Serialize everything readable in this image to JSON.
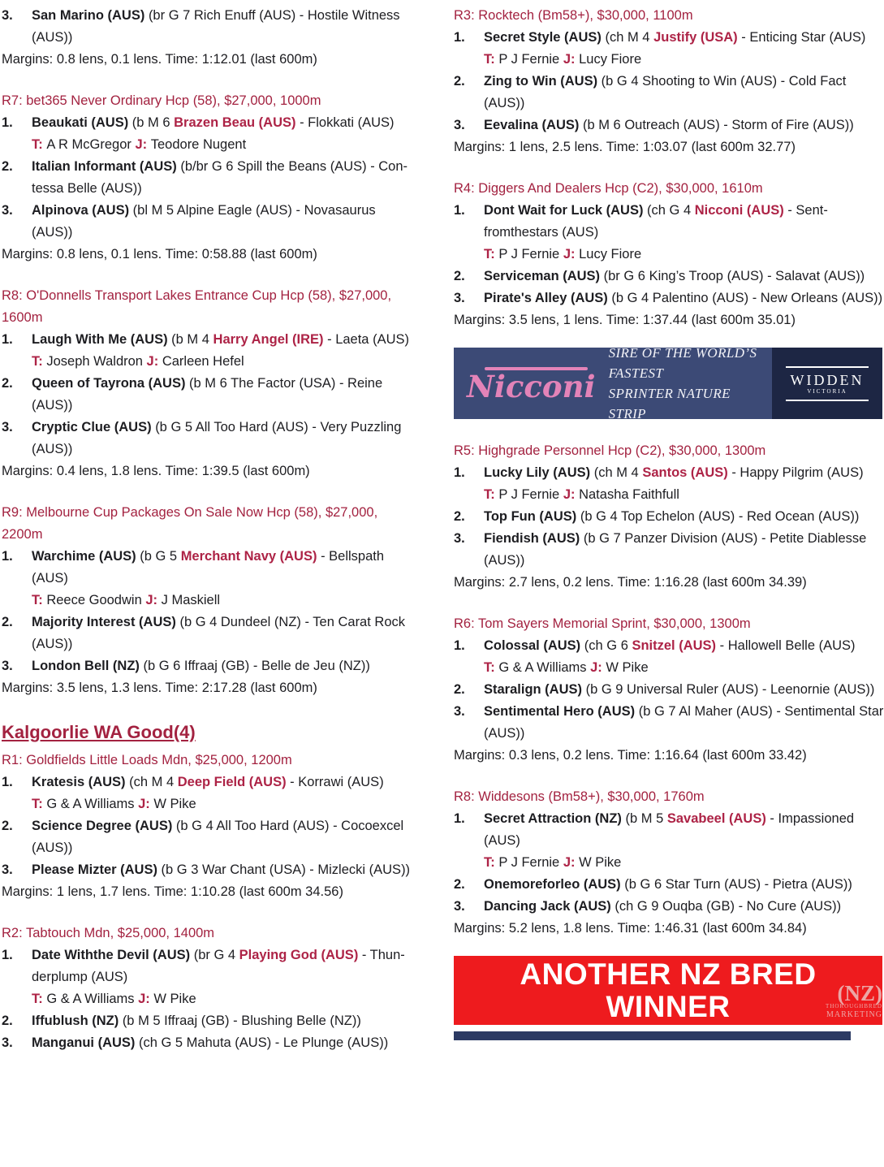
{
  "colors": {
    "accent_header": "#a32240",
    "accent_link": "#ad2346",
    "body_text": "#1d1d21",
    "nicconi_navy": "#3c4a76",
    "widden_navy": "#1d2644",
    "nicconi_pink": "#e383b8",
    "red_banner": "#ee1b1e",
    "banner_text": "#ffffff",
    "nz_mark": "#eba6a6",
    "bottom_strip": "#2c3a63"
  },
  "columns": [
    {
      "side": "left",
      "blocks": [
        {
          "type": "entry",
          "num": "3.",
          "main": [
            {
              "t": "San Marino (AUS) ",
              "s": "b"
            },
            {
              "t": "(br G 7 Rich Enuff (AUS) - Hostile Witness (AUS))",
              "s": "n"
            }
          ]
        },
        {
          "type": "margins",
          "text": "Margins: 0.8 lens, 0.1 lens. Time: 1:12.01 (last 600m)"
        },
        {
          "type": "race_header",
          "text": "R7: bet365 Never Ordinary Hcp (58), $27,000, 1000m"
        },
        {
          "type": "entry",
          "num": "1.",
          "main": [
            {
              "t": "Beaukati (AUS) ",
              "s": "b"
            },
            {
              "t": "(b M 6 ",
              "s": "n"
            },
            {
              "t": "Brazen Beau (AUS)",
              "s": "sire"
            },
            {
              "t": " - Flokkati (AUS)",
              "s": "n"
            }
          ],
          "tj": [
            {
              "t": "T: ",
              "s": "tjlabel"
            },
            {
              "t": "A R McGregor ",
              "s": "n"
            },
            {
              "t": "J: ",
              "s": "tjlabel"
            },
            {
              "t": "Teodore Nugent",
              "s": "n"
            }
          ]
        },
        {
          "type": "entry",
          "num": "2.",
          "main": [
            {
              "t": "Italian Informant (AUS) ",
              "s": "b"
            },
            {
              "t": "(b/br G 6 Spill the Beans (AUS) - Con­tessa Belle (AUS))",
              "s": "n"
            }
          ]
        },
        {
          "type": "entry",
          "num": "3.",
          "main": [
            {
              "t": "Alpinova (AUS) ",
              "s": "b"
            },
            {
              "t": "(bl M 5 Alpine Eagle (AUS) - Novasaurus (AUS))",
              "s": "n"
            }
          ]
        },
        {
          "type": "margins",
          "text": "Margins: 0.8 lens, 0.1 lens. Time: 0:58.88 (last 600m)"
        },
        {
          "type": "race_header",
          "text": "R8: O'Donnells Transport Lakes Entrance Cup Hcp (58), $27,000, 1600m"
        },
        {
          "type": "entry",
          "num": "1.",
          "main": [
            {
              "t": "Laugh With Me (AUS) ",
              "s": "b"
            },
            {
              "t": "(b M 4 ",
              "s": "n"
            },
            {
              "t": "Harry Angel (IRE)",
              "s": "sire"
            },
            {
              "t": " - Laeta (AUS)",
              "s": "n"
            }
          ],
          "tj": [
            {
              "t": "T: ",
              "s": "tjlabel"
            },
            {
              "t": "Joseph Waldron ",
              "s": "n"
            },
            {
              "t": "J: ",
              "s": "tjlabel"
            },
            {
              "t": "Carleen Hefel",
              "s": "n"
            }
          ]
        },
        {
          "type": "entry",
          "num": "2.",
          "main": [
            {
              "t": "Queen of Tayrona (AUS) ",
              "s": "b"
            },
            {
              "t": "(b M 6 The Factor (USA) - Reine (AUS))",
              "s": "n"
            }
          ]
        },
        {
          "type": "entry",
          "num": "3.",
          "main": [
            {
              "t": "Cryptic Clue (AUS) ",
              "s": "b"
            },
            {
              "t": "(b G 5 All Too Hard (AUS) - Very Puzzling (AUS))",
              "s": "n"
            }
          ]
        },
        {
          "type": "margins",
          "text": "Margins: 0.4 lens, 1.8 lens. Time: 1:39.5 (last 600m)"
        },
        {
          "type": "race_header",
          "text": "R9: Melbourne Cup Packages On Sale Now Hcp (58), $27,000, 2200m"
        },
        {
          "type": "entry",
          "num": "1.",
          "main": [
            {
              "t": "Warchime (AUS) ",
              "s": "b"
            },
            {
              "t": "(b G 5 ",
              "s": "n"
            },
            {
              "t": "Merchant Navy (AUS)",
              "s": "sire"
            },
            {
              "t": " - Bellspath (AUS)",
              "s": "n"
            }
          ],
          "tj": [
            {
              "t": "T: ",
              "s": "tjlabel"
            },
            {
              "t": "Reece Goodwin ",
              "s": "n"
            },
            {
              "t": "J: ",
              "s": "tjlabel"
            },
            {
              "t": "J Maskiell",
              "s": "n"
            }
          ]
        },
        {
          "type": "entry",
          "num": "2.",
          "main": [
            {
              "t": "Majority Interest (AUS) ",
              "s": "b"
            },
            {
              "t": "(b G 4 Dundeel (NZ) - Ten Carat Rock (AUS))",
              "s": "n"
            }
          ]
        },
        {
          "type": "entry",
          "num": "3.",
          "main": [
            {
              "t": "London Bell (NZ) ",
              "s": "b"
            },
            {
              "t": "(b G 6 Iffraaj (GB) - Belle de Jeu (NZ))",
              "s": "n"
            }
          ]
        },
        {
          "type": "margins",
          "text": "Margins: 3.5 lens, 1.3 lens. Time: 2:17.28 (last 600m)"
        },
        {
          "type": "heading",
          "text": "Kalgoorlie WA Good(4)"
        },
        {
          "type": "race_header",
          "text": "R1: Goldfields Little Loads Mdn, $25,000, 1200m"
        },
        {
          "type": "entry",
          "num": "1.",
          "main": [
            {
              "t": "Kratesis (AUS) ",
              "s": "b"
            },
            {
              "t": "(ch M 4 ",
              "s": "n"
            },
            {
              "t": "Deep Field (AUS)",
              "s": "sire"
            },
            {
              "t": " - Korrawi (AUS)",
              "s": "n"
            }
          ],
          "tj": [
            {
              "t": "T: ",
              "s": "tjlabel"
            },
            {
              "t": "G & A Williams ",
              "s": "n"
            },
            {
              "t": "J: ",
              "s": "tjlabel"
            },
            {
              "t": "W Pike",
              "s": "n"
            }
          ]
        },
        {
          "type": "entry",
          "num": "2.",
          "main": [
            {
              "t": "Science Degree (AUS) ",
              "s": "b"
            },
            {
              "t": "(b G 4 All Too Hard (AUS) - Cocoexcel (AUS))",
              "s": "n"
            }
          ]
        },
        {
          "type": "entry",
          "num": "3.",
          "main": [
            {
              "t": "Please Mizter (AUS) ",
              "s": "b"
            },
            {
              "t": "(b G 3 War Chant (USA) - Mizlecki (AUS))",
              "s": "n"
            }
          ]
        },
        {
          "type": "margins",
          "text": "Margins: 1 lens, 1.7 lens. Time: 1:10.28 (last 600m 34.56)"
        },
        {
          "type": "race_header",
          "text": "R2: Tabtouch Mdn, $25,000, 1400m"
        },
        {
          "type": "entry",
          "num": "1.",
          "main": [
            {
              "t": "Date Withthe Devil (AUS) ",
              "s": "b"
            },
            {
              "t": "(br G 4 ",
              "s": "n"
            },
            {
              "t": "Playing God (AUS)",
              "s": "sire"
            },
            {
              "t": " - Thun­derplump (AUS)",
              "s": "n"
            }
          ],
          "tj": [
            {
              "t": "T: ",
              "s": "tjlabel"
            },
            {
              "t": "G & A Williams ",
              "s": "n"
            },
            {
              "t": "J: ",
              "s": "tjlabel"
            },
            {
              "t": "W Pike",
              "s": "n"
            }
          ]
        },
        {
          "type": "entry",
          "num": "2.",
          "main": [
            {
              "t": "Iffublush (NZ) ",
              "s": "b"
            },
            {
              "t": "(b M 5 Iffraaj (GB) - Blushing Belle (NZ))",
              "s": "n"
            }
          ]
        },
        {
          "type": "entry",
          "num": "3.",
          "main": [
            {
              "t": "Manganui (AUS) ",
              "s": "b"
            },
            {
              "t": "(ch G 5 Mahuta (AUS) - Le Plunge (AUS))",
              "s": "n"
            }
          ]
        }
      ]
    },
    {
      "side": "right",
      "blocks": [
        {
          "type": "race_header",
          "text": "R3: Rocktech (Bm58+), $30,000, 1100m"
        },
        {
          "type": "entry",
          "num": "1.",
          "main": [
            {
              "t": "Secret Style (AUS) ",
              "s": "b"
            },
            {
              "t": "(ch M 4 ",
              "s": "n"
            },
            {
              "t": "Justify (USA)",
              "s": "sire"
            },
            {
              "t": " - Enticing Star (AUS)",
              "s": "n"
            }
          ],
          "tj": [
            {
              "t": "T: ",
              "s": "tjlabel"
            },
            {
              "t": "P J Fernie ",
              "s": "n"
            },
            {
              "t": "J: ",
              "s": "tjlabel"
            },
            {
              "t": "Lucy Fiore",
              "s": "n"
            }
          ]
        },
        {
          "type": "entry",
          "num": "2.",
          "main": [
            {
              "t": "Zing to Win (AUS) ",
              "s": "b"
            },
            {
              "t": "(b G 4 Shooting to Win (AUS) - Cold Fact (AUS))",
              "s": "n"
            }
          ]
        },
        {
          "type": "entry",
          "num": "3.",
          "main": [
            {
              "t": "Eevalina (AUS) ",
              "s": "b"
            },
            {
              "t": "(b M 6 Outreach (AUS) - Storm of Fire (AUS))",
              "s": "n"
            }
          ]
        },
        {
          "type": "margins",
          "text": "Margins: 1 lens, 2.5 lens. Time: 1:03.07 (last 600m 32.77)"
        },
        {
          "type": "race_header",
          "text": "R4: Diggers And Dealers Hcp (C2), $30,000, 1610m"
        },
        {
          "type": "entry",
          "num": "1.",
          "main": [
            {
              "t": "Dont Wait for Luck (AUS) ",
              "s": "b"
            },
            {
              "t": "(ch G 4 ",
              "s": "n"
            },
            {
              "t": "Nicconi (AUS)",
              "s": "sire"
            },
            {
              "t": " - Sent­fromthestars (AUS)",
              "s": "n"
            }
          ],
          "tj": [
            {
              "t": "T: ",
              "s": "tjlabel"
            },
            {
              "t": "P J Fernie ",
              "s": "n"
            },
            {
              "t": "J: ",
              "s": "tjlabel"
            },
            {
              "t": "Lucy Fiore",
              "s": "n"
            }
          ]
        },
        {
          "type": "entry",
          "num": "2.",
          "main": [
            {
              "t": "Serviceman (AUS) ",
              "s": "b"
            },
            {
              "t": "(br G 6 King’s Troop (AUS) - Salavat (AUS))",
              "s": "n"
            }
          ]
        },
        {
          "type": "entry",
          "num": "3.",
          "main": [
            {
              "t": "Pirate's Alley (AUS) ",
              "s": "b"
            },
            {
              "t": "(b G 4 Palentino (AUS) - New Orleans (AUS))",
              "s": "n"
            }
          ]
        },
        {
          "type": "margins",
          "text": "Margins: 3.5 lens, 1 lens. Time: 1:37.44 (last 600m 35.01)"
        },
        {
          "type": "nicconi_banner",
          "logo": "Nicconi",
          "tagline_line1": "SIRE OF THE WORLD’S FASTEST",
          "tagline_line2": "SPRINTER NATURE STRIP",
          "widden_line1": "WIDDEN",
          "widden_line2": "VICTORIA"
        },
        {
          "type": "race_header",
          "text": "R5: Highgrade Personnel Hcp (C2), $30,000, 1300m"
        },
        {
          "type": "entry",
          "num": "1.",
          "main": [
            {
              "t": "Lucky Lily (AUS) ",
              "s": "b"
            },
            {
              "t": "(ch M 4 ",
              "s": "n"
            },
            {
              "t": "Santos (AUS)",
              "s": "sire"
            },
            {
              "t": " - Happy Pilgrim (AUS)",
              "s": "n"
            }
          ],
          "tj": [
            {
              "t": "T: ",
              "s": "tjlabel"
            },
            {
              "t": "P J Fernie ",
              "s": "n"
            },
            {
              "t": "J: ",
              "s": "tjlabel"
            },
            {
              "t": "Natasha Faithfull",
              "s": "n"
            }
          ]
        },
        {
          "type": "entry",
          "num": "2.",
          "main": [
            {
              "t": "Top Fun (AUS) ",
              "s": "b"
            },
            {
              "t": "(b G 4 Top Echelon (AUS) - Red Ocean (AUS))",
              "s": "n"
            }
          ]
        },
        {
          "type": "entry",
          "num": "3.",
          "main": [
            {
              "t": "Fiendish (AUS) ",
              "s": "b"
            },
            {
              "t": "(b G 7 Panzer Division (AUS) - Petite Diablesse (AUS))",
              "s": "n"
            }
          ]
        },
        {
          "type": "margins",
          "text": "Margins: 2.7 lens, 0.2 lens. Time: 1:16.28 (last 600m 34.39)"
        },
        {
          "type": "race_header",
          "text": "R6: Tom Sayers Memorial Sprint, $30,000, 1300m"
        },
        {
          "type": "entry",
          "num": "1.",
          "main": [
            {
              "t": "Colossal (AUS) ",
              "s": "b"
            },
            {
              "t": "(ch G 6 ",
              "s": "n"
            },
            {
              "t": "Snitzel (AUS)",
              "s": "sire"
            },
            {
              "t": " - Hallowell Belle (AUS)",
              "s": "n"
            }
          ],
          "tj": [
            {
              "t": "T: ",
              "s": "tjlabel"
            },
            {
              "t": "G & A Williams ",
              "s": "n"
            },
            {
              "t": "J: ",
              "s": "tjlabel"
            },
            {
              "t": "W Pike",
              "s": "n"
            }
          ]
        },
        {
          "type": "entry",
          "num": "2.",
          "main": [
            {
              "t": "Staralign (AUS) ",
              "s": "b"
            },
            {
              "t": "(b G 9 Universal Ruler (AUS) - Leenornie (AUS))",
              "s": "n"
            }
          ]
        },
        {
          "type": "entry",
          "num": "3.",
          "main": [
            {
              "t": "Sentimental Hero (AUS) ",
              "s": "b"
            },
            {
              "t": "(b G 7 Al Maher (AUS) - Sentimental Star (AUS))",
              "s": "n"
            }
          ]
        },
        {
          "type": "margins",
          "text": "Margins: 0.3 lens, 0.2 lens. Time: 1:16.64 (last 600m 33.42)"
        },
        {
          "type": "race_header",
          "text": "R8: Widdesons (Bm58+), $30,000, 1760m"
        },
        {
          "type": "entry",
          "num": "1.",
          "main": [
            {
              "t": "Secret Attraction (NZ) ",
              "s": "b"
            },
            {
              "t": "(b M 5 ",
              "s": "n"
            },
            {
              "t": "Savabeel (AUS)",
              "s": "sire"
            },
            {
              "t": " - Impassioned (AUS)",
              "s": "n"
            }
          ],
          "tj": [
            {
              "t": "T: ",
              "s": "tjlabel"
            },
            {
              "t": "P J Fernie ",
              "s": "n"
            },
            {
              "t": "J: ",
              "s": "tjlabel"
            },
            {
              "t": "W Pike",
              "s": "n"
            }
          ]
        },
        {
          "type": "entry",
          "num": "2.",
          "main": [
            {
              "t": "Onemoreforleo (AUS) ",
              "s": "b"
            },
            {
              "t": "(b G 6 Star Turn (AUS) - Pietra (AUS))",
              "s": "n"
            }
          ]
        },
        {
          "type": "entry",
          "num": "3.",
          "main": [
            {
              "t": "Dancing Jack (AUS) ",
              "s": "b"
            },
            {
              "t": "(ch G 9 Ouqba (GB) - No Cure (AUS))",
              "s": "n"
            }
          ]
        },
        {
          "type": "margins",
          "text": "Margins: 5.2 lens, 1.8 lens. Time: 1:46.31 (last 600m 34.84)"
        },
        {
          "type": "red_banner",
          "line1": "ANOTHER NZ BRED",
          "line2": "WINNER",
          "nz_big": "(NZ)",
          "nz_small1": "THOROUGHBRED",
          "nz_small2": "MARKETING"
        },
        {
          "type": "bottom_strip"
        }
      ]
    }
  ]
}
